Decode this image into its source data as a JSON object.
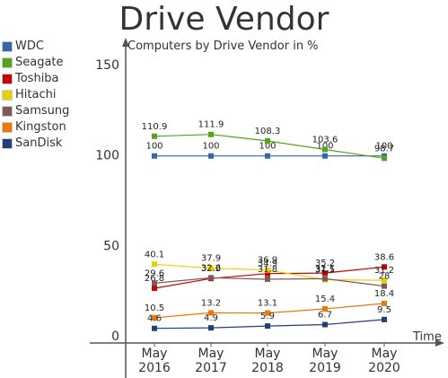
{
  "chart_data": {
    "type": "line",
    "title": "Drive Vendor",
    "subtitle": "Computers by Drive Vendor in %",
    "xlabel": "Time",
    "ylabel": "",
    "categories": [
      "May\n2016",
      "May\n2017",
      "May\n2018",
      "May\n2019",
      "May\n2020"
    ],
    "y_ticks": [
      "0",
      "50",
      "100",
      "150"
    ],
    "ylim": [
      0,
      155
    ],
    "grid": false,
    "legend_position": "left",
    "series": [
      {
        "name": "WDC",
        "color": "#3366aa",
        "values": [
          100,
          100,
          100,
          100,
          100
        ],
        "labels": [
          "100",
          "100",
          "100",
          "100",
          "100"
        ]
      },
      {
        "name": "Seagate",
        "color": "#55a51c",
        "values": [
          110.9,
          111.9,
          108.3,
          103.6,
          98.7
        ],
        "labels": [
          "110.9",
          "111.9",
          "108.3",
          "103.6",
          "98.7"
        ]
      },
      {
        "name": "Toshiba",
        "color": "#cc0000",
        "values": [
          26.8,
          32.2,
          34.9,
          35.2,
          38.6
        ],
        "labels": [
          "26.8",
          "32.2",
          "34.9",
          "35.2",
          "38.6"
        ]
      },
      {
        "name": "Hitachi",
        "color": "#e6d200",
        "values": [
          40.1,
          37.9,
          36.9,
          31.5,
          31.2
        ],
        "labels": [
          "40.1",
          "37.9",
          "36.9",
          "31.5",
          "31.2"
        ]
      },
      {
        "name": "Samsung",
        "color": "#7d5a5a",
        "values": [
          29.6,
          32.6,
          31.8,
          32.1,
          28
        ],
        "labels": [
          "29.6",
          "32.6",
          "31.8",
          "32.1",
          "28"
        ]
      },
      {
        "name": "Kingston",
        "color": "#f07800",
        "values": [
          10.5,
          13.2,
          13.1,
          15.4,
          18.4
        ],
        "labels": [
          "10.5",
          "13.2",
          "13.1",
          "15.4",
          "18.4"
        ]
      },
      {
        "name": "SanDisk",
        "color": "#1f3f7f",
        "values": [
          4.6,
          4.9,
          5.9,
          6.7,
          9.5
        ],
        "labels": [
          "4.6",
          "4.9",
          "5.9",
          "6.7",
          "9.5"
        ]
      }
    ]
  }
}
